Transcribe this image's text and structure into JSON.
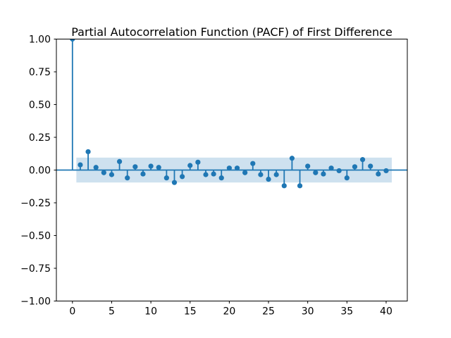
{
  "chart_data": {
    "type": "stem",
    "title": "Partial Autocorrelation Function (PACF) of First Difference",
    "xlabel": "",
    "ylabel": "",
    "x": [
      0,
      1,
      2,
      3,
      4,
      5,
      6,
      7,
      8,
      9,
      10,
      11,
      12,
      13,
      14,
      15,
      16,
      17,
      18,
      19,
      20,
      21,
      22,
      23,
      24,
      25,
      26,
      27,
      28,
      29,
      30,
      31,
      32,
      33,
      34,
      35,
      36,
      37,
      38,
      39,
      40
    ],
    "values": [
      1.0,
      0.04,
      0.14,
      0.02,
      -0.02,
      -0.035,
      0.065,
      -0.06,
      0.025,
      -0.03,
      0.03,
      0.02,
      -0.06,
      -0.095,
      -0.05,
      0.035,
      0.06,
      -0.035,
      -0.03,
      -0.06,
      0.015,
      0.015,
      -0.02,
      0.05,
      -0.035,
      -0.07,
      -0.035,
      -0.12,
      0.09,
      -0.12,
      0.03,
      -0.02,
      -0.03,
      0.015,
      -0.005,
      -0.06,
      0.025,
      0.08,
      0.03,
      -0.03,
      -0.005
    ],
    "confidence_band": {
      "lower": -0.095,
      "upper": 0.095,
      "x_start": 0.5,
      "x_end": 40.72
    },
    "xlim": [
      -2.05,
      42.7
    ],
    "ylim": [
      -1.0,
      1.0
    ],
    "x_ticks": [
      0,
      5,
      10,
      15,
      20,
      25,
      30,
      35,
      40
    ],
    "x_tick_labels": [
      "0",
      "5",
      "10",
      "15",
      "20",
      "25",
      "30",
      "35",
      "40"
    ],
    "y_ticks": [
      1.0,
      0.75,
      0.5,
      0.25,
      0.0,
      -0.25,
      -0.5,
      -0.75,
      -1.0
    ],
    "y_tick_labels": [
      "1.00",
      "0.75",
      "0.50",
      "0.25",
      "0.00",
      "−0.25",
      "−0.50",
      "−0.75",
      "−1.00"
    ],
    "grid": false,
    "legend": null,
    "colors": {
      "stem": "#1f77b4",
      "marker": "#1f77b4",
      "band": "#1f77b4",
      "band_alpha": 0.22,
      "axis": "#000000",
      "background": "#ffffff"
    }
  }
}
